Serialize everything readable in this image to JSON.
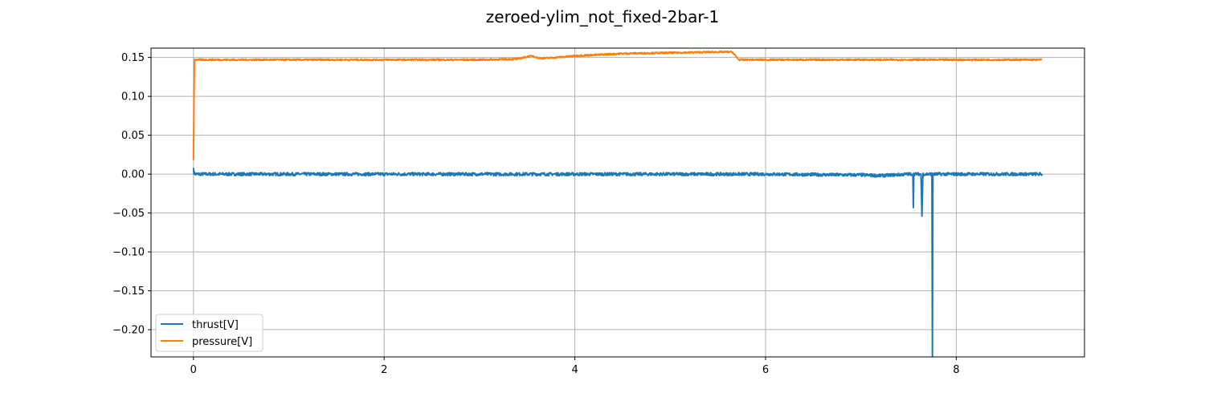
{
  "chart_data": {
    "type": "line",
    "title": "zeroed-ylim_not_fixed-2bar-1",
    "xlabel": "",
    "ylabel": "",
    "xlim": [
      -0.445,
      9.345
    ],
    "ylim": [
      -0.235,
      0.162
    ],
    "xticks": [
      0,
      2,
      4,
      6,
      8
    ],
    "yticks": [
      -0.2,
      -0.15,
      -0.1,
      -0.05,
      0.0,
      0.05,
      0.1,
      0.15
    ],
    "xtick_labels": [
      "0",
      "2",
      "4",
      "6",
      "8"
    ],
    "ytick_labels": [
      "−0.20",
      "−0.15",
      "−0.10",
      "−0.05",
      "0.00",
      "0.05",
      "0.10",
      "0.15"
    ],
    "grid": true,
    "legend_position": "lower-left",
    "series": [
      {
        "name": "thrust[V]",
        "color": "#1f77b4",
        "noise": 0.002,
        "x": [
          0.0,
          0.005,
          0.02,
          1.0,
          2.0,
          3.0,
          4.0,
          5.0,
          6.0,
          6.8,
          7.0,
          7.2,
          7.5,
          7.545,
          7.55,
          7.555,
          7.6,
          7.63,
          7.64,
          7.65,
          7.7,
          7.745,
          7.75,
          7.755,
          7.8,
          8.0,
          8.5,
          8.9
        ],
        "y": [
          0.008,
          0.002,
          0.0,
          0.0,
          0.0,
          0.0,
          0.0,
          0.0,
          0.0,
          -0.001,
          -0.001,
          -0.002,
          0.0,
          0.0,
          -0.043,
          0.0,
          0.0,
          0.0,
          -0.054,
          0.0,
          0.0,
          0.0,
          -0.235,
          0.0,
          0.0,
          0.0,
          0.0,
          0.0
        ]
      },
      {
        "name": "pressure[V]",
        "color": "#ff7f0e",
        "noise": 0.001,
        "x": [
          0.0,
          0.01,
          0.03,
          1.0,
          2.0,
          3.0,
          3.4,
          3.5,
          3.56,
          3.62,
          3.7,
          4.0,
          4.5,
          5.0,
          5.5,
          5.6,
          5.65,
          5.72,
          5.8,
          6.0,
          7.0,
          8.0,
          8.9
        ],
        "y": [
          0.018,
          0.147,
          0.147,
          0.147,
          0.147,
          0.147,
          0.148,
          0.151,
          0.152,
          0.149,
          0.149,
          0.152,
          0.155,
          0.156,
          0.157,
          0.157,
          0.157,
          0.147,
          0.147,
          0.147,
          0.147,
          0.147,
          0.147
        ]
      }
    ]
  }
}
